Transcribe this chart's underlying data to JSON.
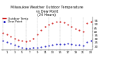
{
  "title": "Milwaukee Weather Outdoor Temperature\nvs Dew Point\n(24 Hours)",
  "title_fontsize": 3.5,
  "hours": [
    0,
    1,
    2,
    3,
    4,
    5,
    6,
    7,
    8,
    9,
    10,
    11,
    12,
    13,
    14,
    15,
    16,
    17,
    18,
    19,
    20,
    21,
    22,
    23
  ],
  "temp": [
    38,
    36,
    34,
    31,
    29,
    28,
    27,
    28,
    31,
    36,
    42,
    47,
    50,
    52,
    54,
    54,
    53,
    50,
    47,
    44,
    42,
    40,
    52,
    54
  ],
  "dew": [
    28,
    26,
    24,
    22,
    20,
    18,
    17,
    17,
    18,
    18,
    19,
    20,
    21,
    22,
    23,
    23,
    23,
    24,
    23,
    22,
    22,
    21,
    26,
    28
  ],
  "temp_color": "#cc0000",
  "dew_color": "#0000bb",
  "bg_color": "#ffffff",
  "grid_color": "#999999",
  "ylim_min": 15,
  "ylim_max": 60,
  "ytick_positions": [
    20,
    25,
    30,
    35,
    40,
    45,
    50,
    55
  ],
  "ytick_labels": [
    "20",
    "25",
    "30",
    "35",
    "40",
    "45",
    "50",
    "55"
  ],
  "ylabel_fontsize": 3.0,
  "xlabel_fontsize": 2.8,
  "marker_size": 1.0,
  "legend_labels": [
    "Outdoor Temp",
    "Dew Point"
  ],
  "legend_fontsize": 3.0,
  "xtick_every": 2,
  "vgrid_every": 3
}
